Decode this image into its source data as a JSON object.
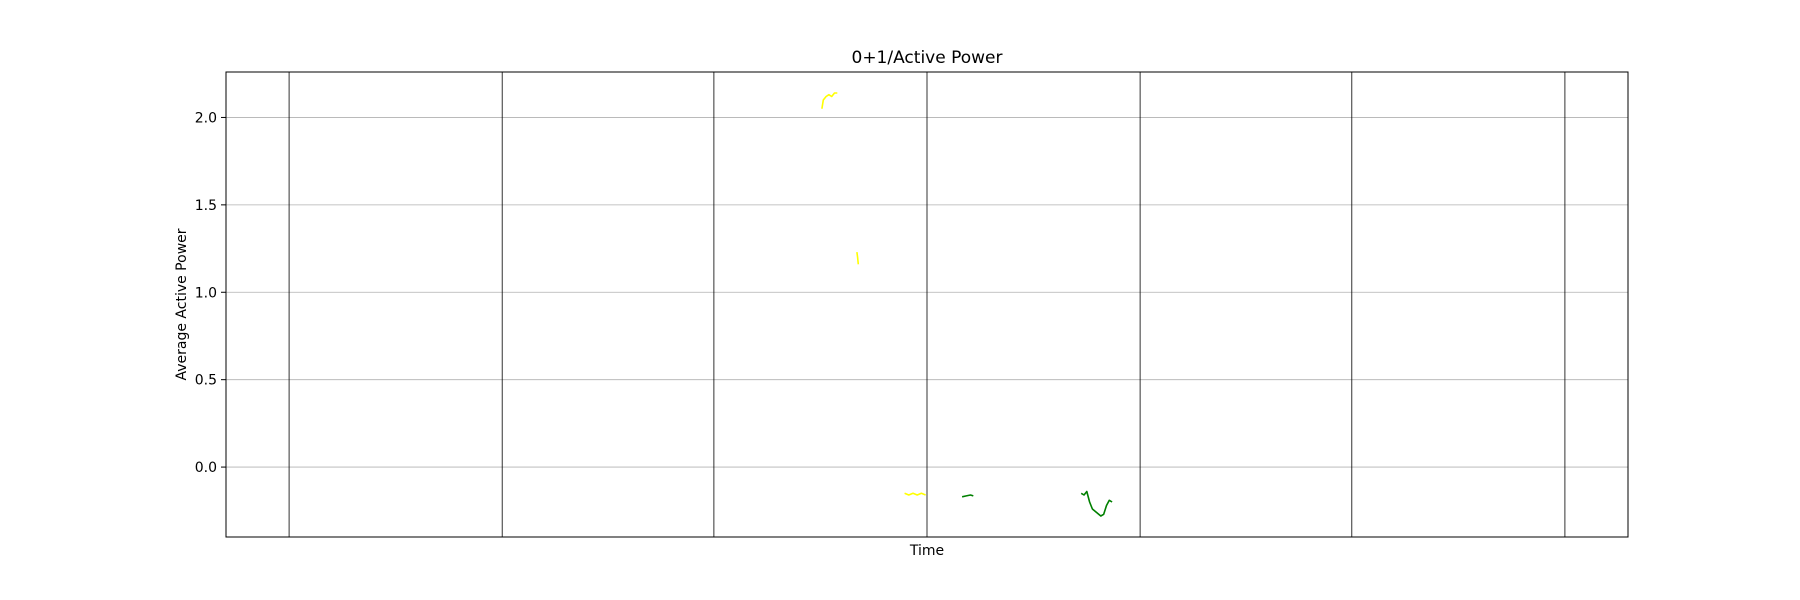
{
  "chart_data": {
    "type": "line",
    "title": "0+1/Active Power",
    "xlabel": "Time",
    "ylabel": "Average Active Power",
    "ylim": [
      -0.4,
      2.26
    ],
    "xlim": [
      0,
      100
    ],
    "y_ticks": [
      0.0,
      0.5,
      1.0,
      1.5,
      2.0
    ],
    "y_tick_labels": [
      "0.0",
      "0.5",
      "1.0",
      "1.5",
      "2.0"
    ],
    "x_gridlines": [
      4.5,
      19.7,
      34.8,
      50.0,
      65.2,
      80.3,
      95.5
    ],
    "grid": true,
    "legend": "none",
    "series": [
      {
        "color": "#ffff00",
        "segments": [
          [
            [
              42.5,
              2.05
            ],
            [
              42.6,
              2.1
            ],
            [
              42.8,
              2.12
            ],
            [
              43.0,
              2.13
            ],
            [
              43.2,
              2.12
            ],
            [
              43.4,
              2.14
            ],
            [
              43.6,
              2.14
            ]
          ],
          [
            [
              45.0,
              1.23
            ],
            [
              45.05,
              1.2
            ],
            [
              45.1,
              1.16
            ]
          ],
          [
            [
              48.4,
              -0.15
            ],
            [
              48.7,
              -0.16
            ],
            [
              49.0,
              -0.15
            ],
            [
              49.3,
              -0.16
            ],
            [
              49.6,
              -0.15
            ],
            [
              49.9,
              -0.16
            ]
          ]
        ]
      },
      {
        "color": "#008000",
        "segments": [
          [
            [
              52.5,
              -0.17
            ],
            [
              52.8,
              -0.165
            ],
            [
              53.1,
              -0.16
            ],
            [
              53.3,
              -0.165
            ]
          ],
          [
            [
              61.0,
              -0.15
            ],
            [
              61.2,
              -0.16
            ],
            [
              61.4,
              -0.14
            ],
            [
              61.6,
              -0.2
            ],
            [
              61.8,
              -0.24
            ],
            [
              62.1,
              -0.26
            ],
            [
              62.4,
              -0.28
            ],
            [
              62.6,
              -0.27
            ],
            [
              62.8,
              -0.22
            ],
            [
              63.0,
              -0.19
            ],
            [
              63.2,
              -0.2
            ]
          ]
        ]
      }
    ]
  }
}
